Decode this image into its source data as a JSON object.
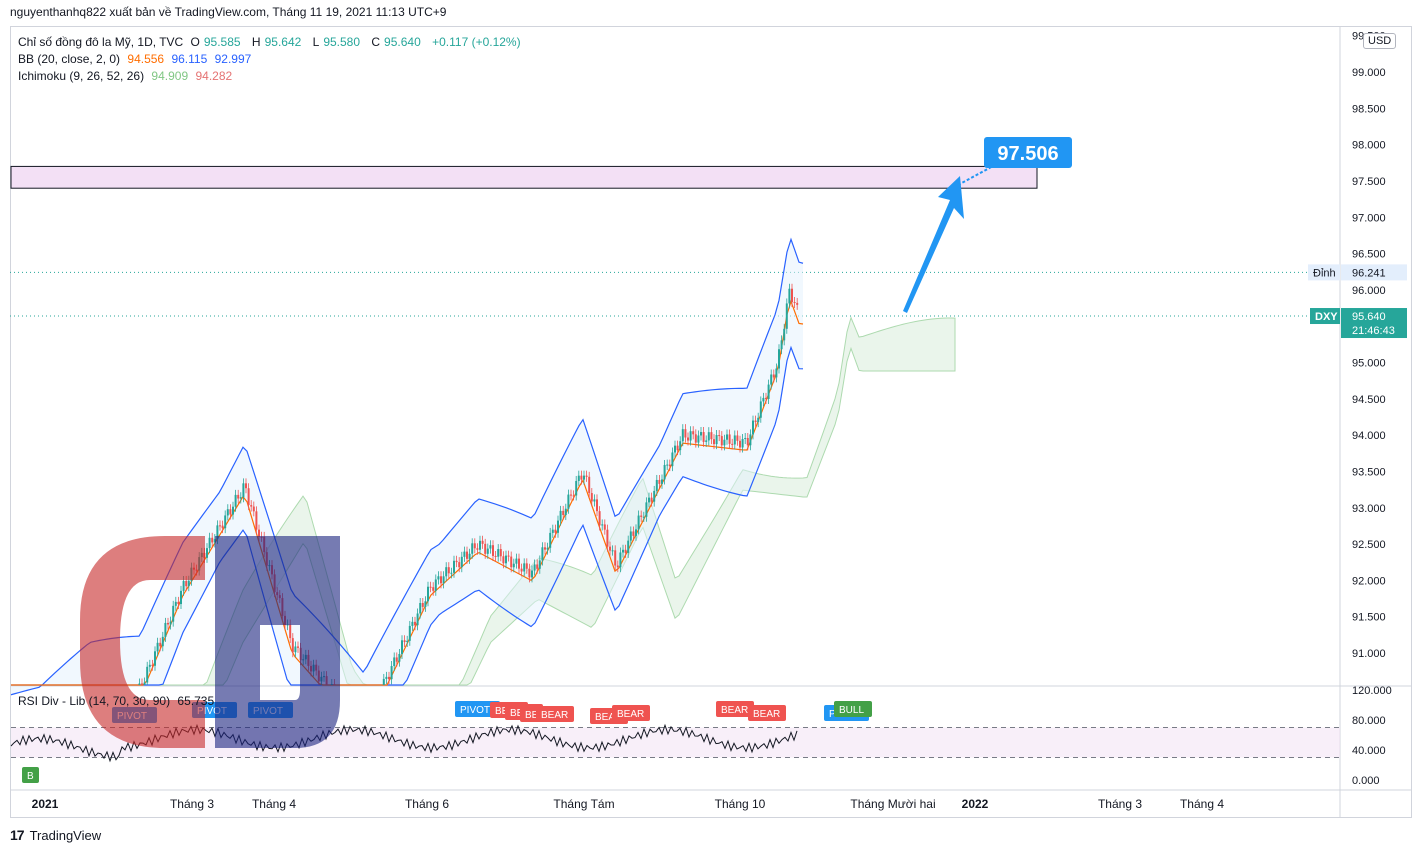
{
  "header": {
    "text": "nguyenthanhq822 xuất bản về TradingView.com, Tháng 11 19, 2021 11:13 UTC+9"
  },
  "legend": {
    "symbol": "Chỉ số đồng đô la Mỹ, 1D, TVC",
    "o_label": "O",
    "o_value": "95.585",
    "h_label": "H",
    "h_value": "95.642",
    "l_label": "L",
    "l_value": "95.580",
    "c_label": "C",
    "c_value": "95.640",
    "change": "+0.117 (+0.12%)",
    "bb_name": "BB (20, close, 2, 0)",
    "bb_v1": "94.556",
    "bb_v2": "96.115",
    "bb_v3": "92.997",
    "ichi_name": "Ichimoku (9, 26, 52, 26)",
    "ichi_v1": "94.909",
    "ichi_v2": "94.282",
    "rsi_name": "RSI Div - Lib (14, 70, 30, 90)",
    "rsi_value": "65.735"
  },
  "currency": "USD",
  "annotation": {
    "target": "97.506"
  },
  "price_labels": {
    "peak_label": "Đỉnh",
    "peak_value": "96.241",
    "symbol_tag": "DXY",
    "last_value": "95.640",
    "countdown": "21:46:43"
  },
  "footer": {
    "brand": "TradingView"
  },
  "colors": {
    "up": "#26a69a",
    "down": "#ef5350",
    "bb": "#2962ff",
    "basis": "#ff6d00",
    "cloud_up": "#a5d6a7",
    "cloud_down": "#f8bbd0",
    "target": "#2196f3"
  },
  "chart_data": {
    "type": "candlestick",
    "price_axis": {
      "ticks": [
        "91.000",
        "91.500",
        "92.000",
        "92.500",
        "93.000",
        "93.500",
        "94.000",
        "94.500",
        "95.000",
        "95.500",
        "96.000",
        "96.500",
        "97.000",
        "97.500",
        "98.000",
        "98.500",
        "99.000"
      ],
      "top_tick_partial": "99.500"
    },
    "rsi_axis": {
      "ticks": [
        "0.000",
        "40.000",
        "80.000",
        "120.000"
      ],
      "upper_band": 70,
      "lower_band": 30
    },
    "time_axis": [
      "2021",
      "Tháng 3",
      "Tháng 4",
      "Tháng 6",
      "Tháng Tám",
      "Tháng 10",
      "Tháng Mười hai",
      "2022",
      "Tháng 3",
      "Tháng 4"
    ],
    "resistance_zone": [
      97.4,
      97.7
    ],
    "target": 97.506,
    "peak": 96.241,
    "last": 95.64,
    "close_path": [
      [
        "2021-01-04",
        89.9
      ],
      [
        "2021-01-25",
        90.4
      ],
      [
        "2021-02-15",
        90.5
      ],
      [
        "2021-03-05",
        91.9
      ],
      [
        "2021-03-31",
        93.3
      ],
      [
        "2021-04-20",
        91.1
      ],
      [
        "2021-05-20",
        90.0
      ],
      [
        "2021-06-17",
        91.9
      ],
      [
        "2021-07-07",
        92.5
      ],
      [
        "2021-07-30",
        92.1
      ],
      [
        "2021-08-20",
        93.5
      ],
      [
        "2021-09-03",
        92.2
      ],
      [
        "2021-10-01",
        94.0
      ],
      [
        "2021-10-28",
        93.9
      ],
      [
        "2021-11-10",
        95.0
      ],
      [
        "2021-11-15",
        96.0
      ],
      [
        "2021-11-19",
        95.64
      ]
    ],
    "markers": [
      {
        "label": "PIVOT",
        "kind": "pivot"
      },
      {
        "label": "PIVOT",
        "kind": "pivot"
      },
      {
        "label": "PIVOT",
        "kind": "pivot"
      },
      {
        "label": "PIVOT",
        "kind": "pivot"
      },
      {
        "label": "BEAR",
        "kind": "bear"
      },
      {
        "label": "BEAR",
        "kind": "bear"
      },
      {
        "label": "BEAR",
        "kind": "bear"
      },
      {
        "label": "BEAR",
        "kind": "bear"
      },
      {
        "label": "BEAR",
        "kind": "bear"
      },
      {
        "label": "BEAR",
        "kind": "bear"
      },
      {
        "label": "BEAR",
        "kind": "bear"
      },
      {
        "label": "BEAR",
        "kind": "bear"
      },
      {
        "label": "PIVOT",
        "kind": "pivot"
      },
      {
        "label": "BULL",
        "kind": "bull"
      }
    ]
  }
}
